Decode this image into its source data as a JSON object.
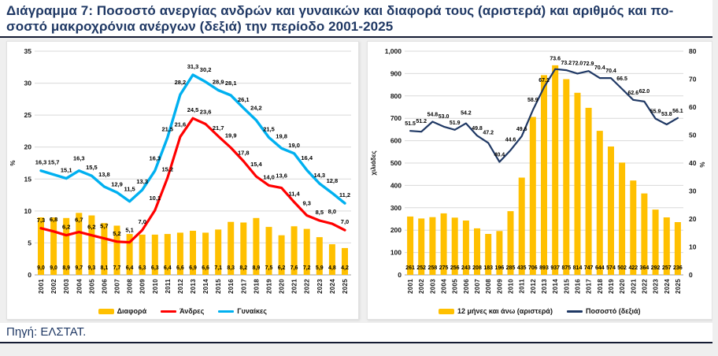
{
  "page": {
    "title_line1": "Διάγραμμα 7: Ποσοστό ανεργίας ανδρών και γυναικών και διαφορά τους (αριστερά) και αριθμός και πο-",
    "title_line2": "σοστό μακροχρόνια ανέργων (δεξιά) την περίοδο 2001-2025",
    "source": "Πηγή: ΕΛΣΤΑΤ."
  },
  "colors": {
    "title_text": "#1f3864",
    "bar_gold": "#FFC000",
    "men_red": "#FF0000",
    "women_blue": "#00B0F0",
    "share_navy": "#1f3864",
    "gridline": "#d9d9d9",
    "band_background": "#efefef"
  },
  "chart_data": [
    {
      "type": "bar+line",
      "title": "Ποσοστό ανεργίας ανδρών και γυναικών και διαφορά τους (αριστερά)",
      "ylabel_left": "%",
      "axis_left": {
        "min": 0,
        "max": 35,
        "step": 5
      },
      "grid": true,
      "legend_position": "bottom",
      "categories": [
        "2001",
        "2002",
        "2003",
        "2004",
        "2005",
        "2006",
        "2007",
        "2008",
        "2009",
        "2010",
        "2011",
        "2012",
        "2013",
        "2014",
        "2015",
        "2016",
        "2017",
        "2018",
        "2019",
        "2020",
        "2021",
        "2022",
        "2023",
        "2024",
        "2025"
      ],
      "series": [
        {
          "key": "diafora",
          "name": "Διαφορά",
          "type": "bar",
          "axis": "left",
          "color": "#FFC000",
          "show_labels": true,
          "label_pos": "base",
          "label_format": "comma1",
          "label_size": 7,
          "values": [
            9.0,
            9.0,
            8.9,
            9.7,
            9.3,
            8.1,
            7.7,
            6.4,
            6.3,
            6.3,
            6.4,
            6.6,
            6.9,
            6.6,
            7.1,
            8.3,
            8.2,
            8.9,
            7.5,
            6.2,
            7.6,
            7.2,
            5.9,
            4.8,
            4.2
          ]
        },
        {
          "key": "andres",
          "name": "Άνδρες",
          "type": "line",
          "axis": "left",
          "color": "#FF0000",
          "width": 3.2,
          "show_labels": true,
          "label_dy": 8,
          "label_stagger": 5,
          "label_format": "comma1",
          "label_size": 7.5,
          "values": [
            7.3,
            6.8,
            6.2,
            6.7,
            6.2,
            5.7,
            5.2,
            5.1,
            7.0,
            10.1,
            15.2,
            21.6,
            24.5,
            23.6,
            21.7,
            19.9,
            17.8,
            15.4,
            14.0,
            13.6,
            11.4,
            9.3,
            8.5,
            8.0,
            7.0
          ]
        },
        {
          "key": "gynaikes",
          "name": "Γυναίκες",
          "type": "line",
          "axis": "left",
          "color": "#00B0F0",
          "width": 3.4,
          "show_labels": true,
          "label_dy": 8,
          "label_stagger": 5,
          "label_format": "comma1",
          "label_size": 7.5,
          "values": [
            16.3,
            15.7,
            15.1,
            16.3,
            15.5,
            13.8,
            12.9,
            11.5,
            13.3,
            16.3,
            21.5,
            28.2,
            31.3,
            30.2,
            28.9,
            28.1,
            26.1,
            24.2,
            21.5,
            19.8,
            19.0,
            16.4,
            14.3,
            12.8,
            11.2
          ]
        }
      ]
    },
    {
      "type": "bar+line",
      "title": "Αριθμός και ποσοστό μακροχρόνια ανέργων (δεξιά)",
      "ylabel_left": "χιλιάδες",
      "axis_left": {
        "min": 0,
        "max": 1000,
        "step": 100,
        "format": "thousands"
      },
      "axis_right": {
        "min": 0,
        "max": 80,
        "step": 10,
        "unit": "%",
        "unit_at": 40
      },
      "grid": true,
      "legend_position": "bottom",
      "categories": [
        "2001",
        "2002",
        "2003",
        "2004",
        "2005",
        "2006",
        "2007",
        "2008",
        "2009",
        "2010",
        "2011",
        "2012",
        "2013",
        "2014",
        "2015",
        "2016",
        "2017",
        "2018",
        "2019",
        "2020",
        "2021",
        "2022",
        "2023",
        "2024",
        "2025"
      ],
      "series": [
        {
          "key": "ltu-count",
          "name": "12 μήνες και άνω (αριστερά)",
          "type": "bar",
          "axis": "left",
          "color": "#FFC000",
          "show_labels": true,
          "label_pos": "base",
          "label_format": "int",
          "label_size": 7,
          "values": [
            261,
            252,
            258,
            275,
            256,
            243,
            208,
            183,
            196,
            285,
            435,
            706,
            893,
            937,
            875,
            814,
            747,
            644,
            574,
            502,
            422,
            364,
            292,
            257,
            236
          ]
        },
        {
          "key": "ltu-share",
          "name": "Ποσοστό (δεξιά)",
          "type": "line",
          "axis": "right",
          "color": "#1f3864",
          "width": 2.2,
          "show_labels": true,
          "label_dy": 7,
          "label_stagger": 4,
          "label_format": "dot1",
          "label_size": 7,
          "values": [
            51.5,
            51.2,
            54.8,
            53.0,
            51.9,
            54.2,
            49.8,
            47.2,
            40.4,
            44.6,
            49.6,
            58.9,
            67.1,
            73.6,
            73.2,
            72.0,
            72.9,
            70.4,
            70.4,
            66.5,
            62.6,
            62.0,
            55.9,
            53.8,
            56.1
          ]
        }
      ]
    }
  ]
}
